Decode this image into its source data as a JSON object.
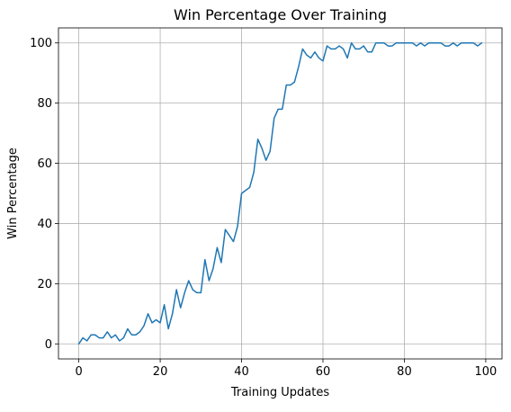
{
  "chart_data": {
    "type": "line",
    "title": "Win Percentage Over Training",
    "xlabel": "Training Updates",
    "ylabel": "Win Percentage",
    "xlim": [
      -5,
      104
    ],
    "ylim": [
      -5,
      105
    ],
    "xticks": [
      0,
      20,
      40,
      60,
      80,
      100
    ],
    "yticks": [
      0,
      20,
      40,
      60,
      80,
      100
    ],
    "grid": true,
    "series": [
      {
        "color": "#1f77b4",
        "x": [
          0,
          1,
          2,
          3,
          4,
          5,
          6,
          7,
          8,
          9,
          10,
          11,
          12,
          13,
          14,
          15,
          16,
          17,
          18,
          19,
          20,
          21,
          22,
          23,
          24,
          25,
          26,
          27,
          28,
          29,
          30,
          31,
          32,
          33,
          34,
          35,
          36,
          37,
          38,
          39,
          40,
          41,
          42,
          43,
          44,
          45,
          46,
          47,
          48,
          49,
          50,
          51,
          52,
          53,
          54,
          55,
          56,
          57,
          58,
          59,
          60,
          61,
          62,
          63,
          64,
          65,
          66,
          67,
          68,
          69,
          70,
          71,
          72,
          73,
          74,
          75,
          76,
          77,
          78,
          79,
          80,
          81,
          82,
          83,
          84,
          85,
          86,
          87,
          88,
          89,
          90,
          91,
          92,
          93,
          94,
          95,
          96,
          97,
          98,
          99
        ],
        "y": [
          0,
          2,
          1,
          3,
          3,
          2,
          2,
          4,
          2,
          3,
          1,
          2,
          5,
          3,
          3,
          4,
          6,
          10,
          7,
          8,
          7,
          13,
          5,
          10,
          18,
          12,
          17,
          21,
          18,
          17,
          17,
          28,
          21,
          25,
          32,
          27,
          38,
          36,
          34,
          39,
          50,
          51,
          52,
          57,
          68,
          65,
          61,
          64,
          75,
          78,
          78,
          86,
          86,
          87,
          92,
          98,
          96,
          95,
          97,
          95,
          94,
          99,
          98,
          98,
          99,
          98,
          95,
          100,
          98,
          98,
          99,
          97,
          97,
          100,
          100,
          100,
          99,
          99,
          100,
          100,
          100,
          100,
          100,
          99,
          100,
          99,
          100,
          100,
          100,
          100,
          99,
          99,
          100,
          99,
          100,
          100,
          100,
          100,
          99,
          100
        ]
      }
    ]
  }
}
